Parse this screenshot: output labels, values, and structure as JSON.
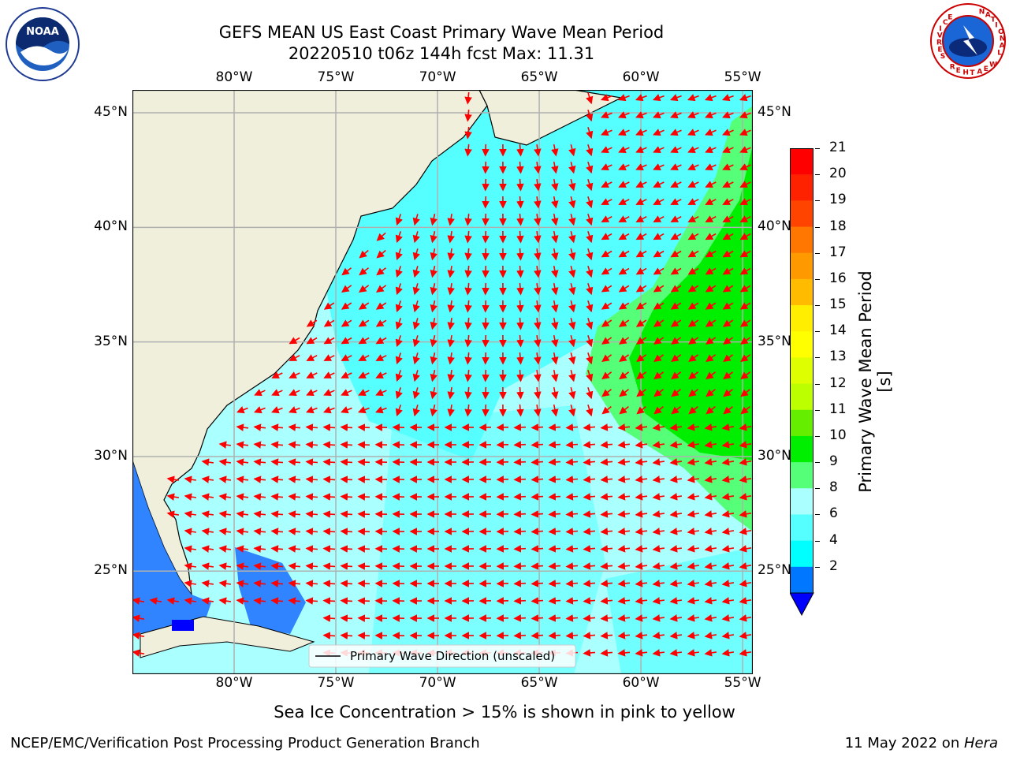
{
  "title": {
    "line1": "GEFS MEAN US East Coast Primary Wave Mean Period",
    "line2": "20220510 t06z 144h fcst   Max: 11.31"
  },
  "logos": {
    "left_text": "NOAA",
    "right_text": "NATIONAL WEATHER SERVICE"
  },
  "map": {
    "lon_ticks": [
      "80°W",
      "75°W",
      "70°W",
      "65°W",
      "60°W",
      "55°W"
    ],
    "lat_ticks": [
      "45°N",
      "40°N",
      "35°N",
      "30°N",
      "25°N"
    ],
    "lon_range": [
      -85,
      -54.5
    ],
    "lat_range": [
      20.5,
      46
    ],
    "legend_label": "Primary Wave Direction (unscaled)",
    "arrow_color": "#ff0000",
    "land_color": "#efefdc"
  },
  "colorbar": {
    "label": "Primary Wave Mean Period [s]",
    "ticks": [
      "21",
      "20",
      "19",
      "18",
      "17",
      "16",
      "15",
      "14",
      "13",
      "12",
      "11",
      "10",
      "9",
      "8",
      "6",
      "4",
      "2"
    ],
    "colors": [
      "#ff0000",
      "#ff2200",
      "#ff4400",
      "#ff7700",
      "#ff9900",
      "#ffbb00",
      "#ffee00",
      "#ffff00",
      "#ddff00",
      "#bbff00",
      "#66ee00",
      "#00ee00",
      "#55ff77",
      "#aaffff",
      "#55ffff",
      "#00ffff",
      "#0077ff"
    ],
    "under_color": "#0000ff"
  },
  "caption": "Sea Ice Concentration > 15% is shown in pink to yellow",
  "footer": {
    "left": "NCEP/EMC/Verification Post Processing Product Generation Branch",
    "right_date": "11 May 2022 on ",
    "right_host": "Hera"
  }
}
